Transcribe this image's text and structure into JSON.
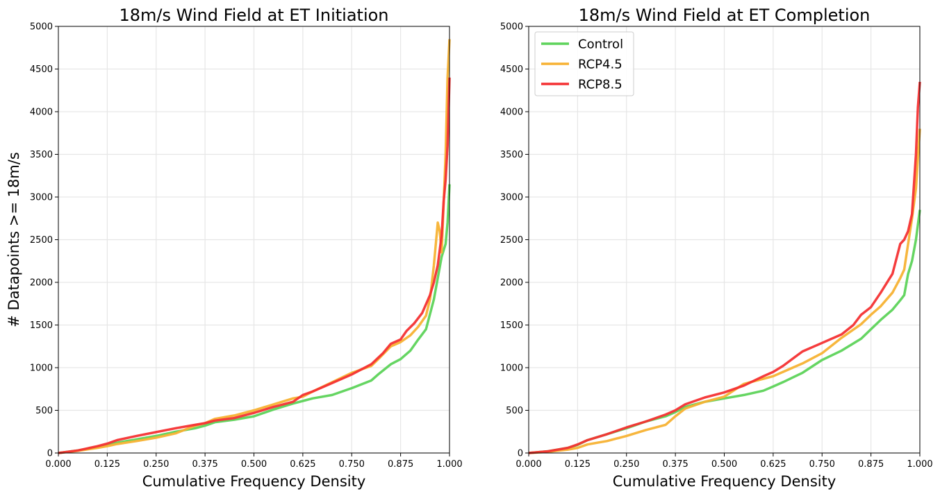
{
  "chart_data": [
    {
      "type": "line",
      "title": "18m/s Wind Field at ET Initiation",
      "xlabel": "Cumulative Frequency Density",
      "ylabel": "# Datapoints >= 18m/s",
      "xlim": [
        0,
        1
      ],
      "ylim": [
        0,
        5000
      ],
      "xticks": [
        "0.000",
        "0.125",
        "0.250",
        "0.375",
        "0.500",
        "0.625",
        "0.750",
        "0.875",
        "1.000"
      ],
      "yticks": [
        "0",
        "500",
        "1000",
        "1500",
        "2000",
        "2500",
        "3000",
        "3500",
        "4000",
        "4500",
        "5000"
      ],
      "grid": true,
      "legend": "none",
      "series": [
        {
          "name": "Control",
          "color": "#5dd35a",
          "x": [
            0,
            0.05,
            0.1,
            0.125,
            0.15,
            0.2,
            0.25,
            0.3,
            0.35,
            0.375,
            0.4,
            0.45,
            0.5,
            0.55,
            0.6,
            0.625,
            0.65,
            0.7,
            0.75,
            0.8,
            0.82,
            0.85,
            0.875,
            0.9,
            0.92,
            0.94,
            0.96,
            0.97,
            0.98,
            0.99,
            0.995,
            1.0
          ],
          "y": [
            0,
            30,
            70,
            95,
            120,
            160,
            200,
            250,
            290,
            320,
            360,
            390,
            430,
            510,
            580,
            610,
            640,
            680,
            760,
            850,
            930,
            1040,
            1100,
            1200,
            1330,
            1450,
            1800,
            2050,
            2300,
            2450,
            2700,
            3150
          ]
        },
        {
          "name": "RCP4.5",
          "color": "#f7b233",
          "x": [
            0,
            0.05,
            0.1,
            0.125,
            0.15,
            0.2,
            0.25,
            0.3,
            0.35,
            0.375,
            0.4,
            0.45,
            0.5,
            0.55,
            0.6,
            0.625,
            0.65,
            0.7,
            0.75,
            0.8,
            0.82,
            0.85,
            0.875,
            0.9,
            0.92,
            0.94,
            0.95,
            0.96,
            0.97,
            0.975,
            0.98,
            0.99,
            0.995,
            1.0
          ],
          "y": [
            0,
            25,
            60,
            80,
            105,
            140,
            180,
            230,
            320,
            350,
            400,
            440,
            500,
            570,
            640,
            660,
            720,
            830,
            940,
            1020,
            1110,
            1250,
            1300,
            1380,
            1480,
            1610,
            1800,
            2200,
            2700,
            2600,
            2350,
            3500,
            4400,
            4850
          ]
        },
        {
          "name": "RCP8.5",
          "color": "#f43133",
          "x": [
            0,
            0.05,
            0.1,
            0.125,
            0.15,
            0.2,
            0.25,
            0.3,
            0.35,
            0.375,
            0.4,
            0.45,
            0.5,
            0.55,
            0.6,
            0.625,
            0.65,
            0.7,
            0.75,
            0.8,
            0.83,
            0.85,
            0.875,
            0.89,
            0.91,
            0.93,
            0.95,
            0.96,
            0.97,
            0.98,
            0.985,
            0.99,
            0.995,
            1.0
          ],
          "y": [
            0,
            30,
            80,
            110,
            150,
            200,
            245,
            290,
            330,
            350,
            380,
            410,
            470,
            540,
            600,
            680,
            720,
            820,
            920,
            1040,
            1170,
            1280,
            1330,
            1430,
            1520,
            1640,
            1850,
            2000,
            2200,
            2550,
            2950,
            3200,
            3600,
            4400
          ]
        }
      ]
    },
    {
      "type": "line",
      "title": "18m/s Wind Field at ET Completion",
      "xlabel": "Cumulative Frequency Density",
      "ylabel": "",
      "xlim": [
        0,
        1
      ],
      "ylim": [
        0,
        5000
      ],
      "xticks": [
        "0.000",
        "0.125",
        "0.250",
        "0.375",
        "0.500",
        "0.625",
        "0.750",
        "0.875",
        "1.000"
      ],
      "yticks": [
        "0",
        "500",
        "1000",
        "1500",
        "2000",
        "2500",
        "3000",
        "3500",
        "4000",
        "4500",
        "5000"
      ],
      "grid": true,
      "legend": "top-left",
      "series": [
        {
          "name": "Control",
          "color": "#5dd35a",
          "x": [
            0,
            0.05,
            0.1,
            0.125,
            0.15,
            0.2,
            0.25,
            0.3,
            0.35,
            0.375,
            0.4,
            0.45,
            0.5,
            0.55,
            0.6,
            0.625,
            0.65,
            0.7,
            0.75,
            0.8,
            0.85,
            0.875,
            0.9,
            0.93,
            0.95,
            0.96,
            0.97,
            0.98,
            0.99,
            1.0
          ],
          "y": [
            0,
            20,
            60,
            95,
            150,
            220,
            290,
            370,
            430,
            480,
            540,
            600,
            640,
            680,
            730,
            780,
            830,
            940,
            1090,
            1200,
            1340,
            1450,
            1560,
            1680,
            1790,
            1850,
            2100,
            2250,
            2500,
            2850
          ]
        },
        {
          "name": "RCP4.5",
          "color": "#f7b233",
          "x": [
            0,
            0.05,
            0.1,
            0.125,
            0.15,
            0.2,
            0.25,
            0.3,
            0.35,
            0.375,
            0.4,
            0.45,
            0.5,
            0.55,
            0.6,
            0.625,
            0.65,
            0.7,
            0.75,
            0.8,
            0.85,
            0.875,
            0.9,
            0.93,
            0.95,
            0.96,
            0.97,
            0.98,
            0.99,
            1.0
          ],
          "y": [
            0,
            15,
            40,
            60,
            100,
            140,
            200,
            270,
            330,
            430,
            520,
            600,
            660,
            810,
            870,
            900,
            950,
            1050,
            1170,
            1350,
            1510,
            1620,
            1720,
            1880,
            2050,
            2150,
            2450,
            2750,
            3100,
            3800
          ]
        },
        {
          "name": "RCP8.5",
          "color": "#f43133",
          "x": [
            0,
            0.05,
            0.1,
            0.125,
            0.15,
            0.2,
            0.25,
            0.3,
            0.35,
            0.375,
            0.4,
            0.45,
            0.5,
            0.55,
            0.6,
            0.625,
            0.65,
            0.7,
            0.75,
            0.8,
            0.83,
            0.85,
            0.875,
            0.9,
            0.93,
            0.95,
            0.96,
            0.97,
            0.98,
            0.99,
            0.995,
            1.0
          ],
          "y": [
            0,
            20,
            60,
            100,
            150,
            220,
            300,
            370,
            450,
            500,
            570,
            650,
            710,
            790,
            900,
            950,
            1020,
            1190,
            1290,
            1390,
            1500,
            1620,
            1710,
            1880,
            2100,
            2450,
            2500,
            2600,
            2800,
            3500,
            4050,
            4350
          ]
        }
      ]
    }
  ]
}
